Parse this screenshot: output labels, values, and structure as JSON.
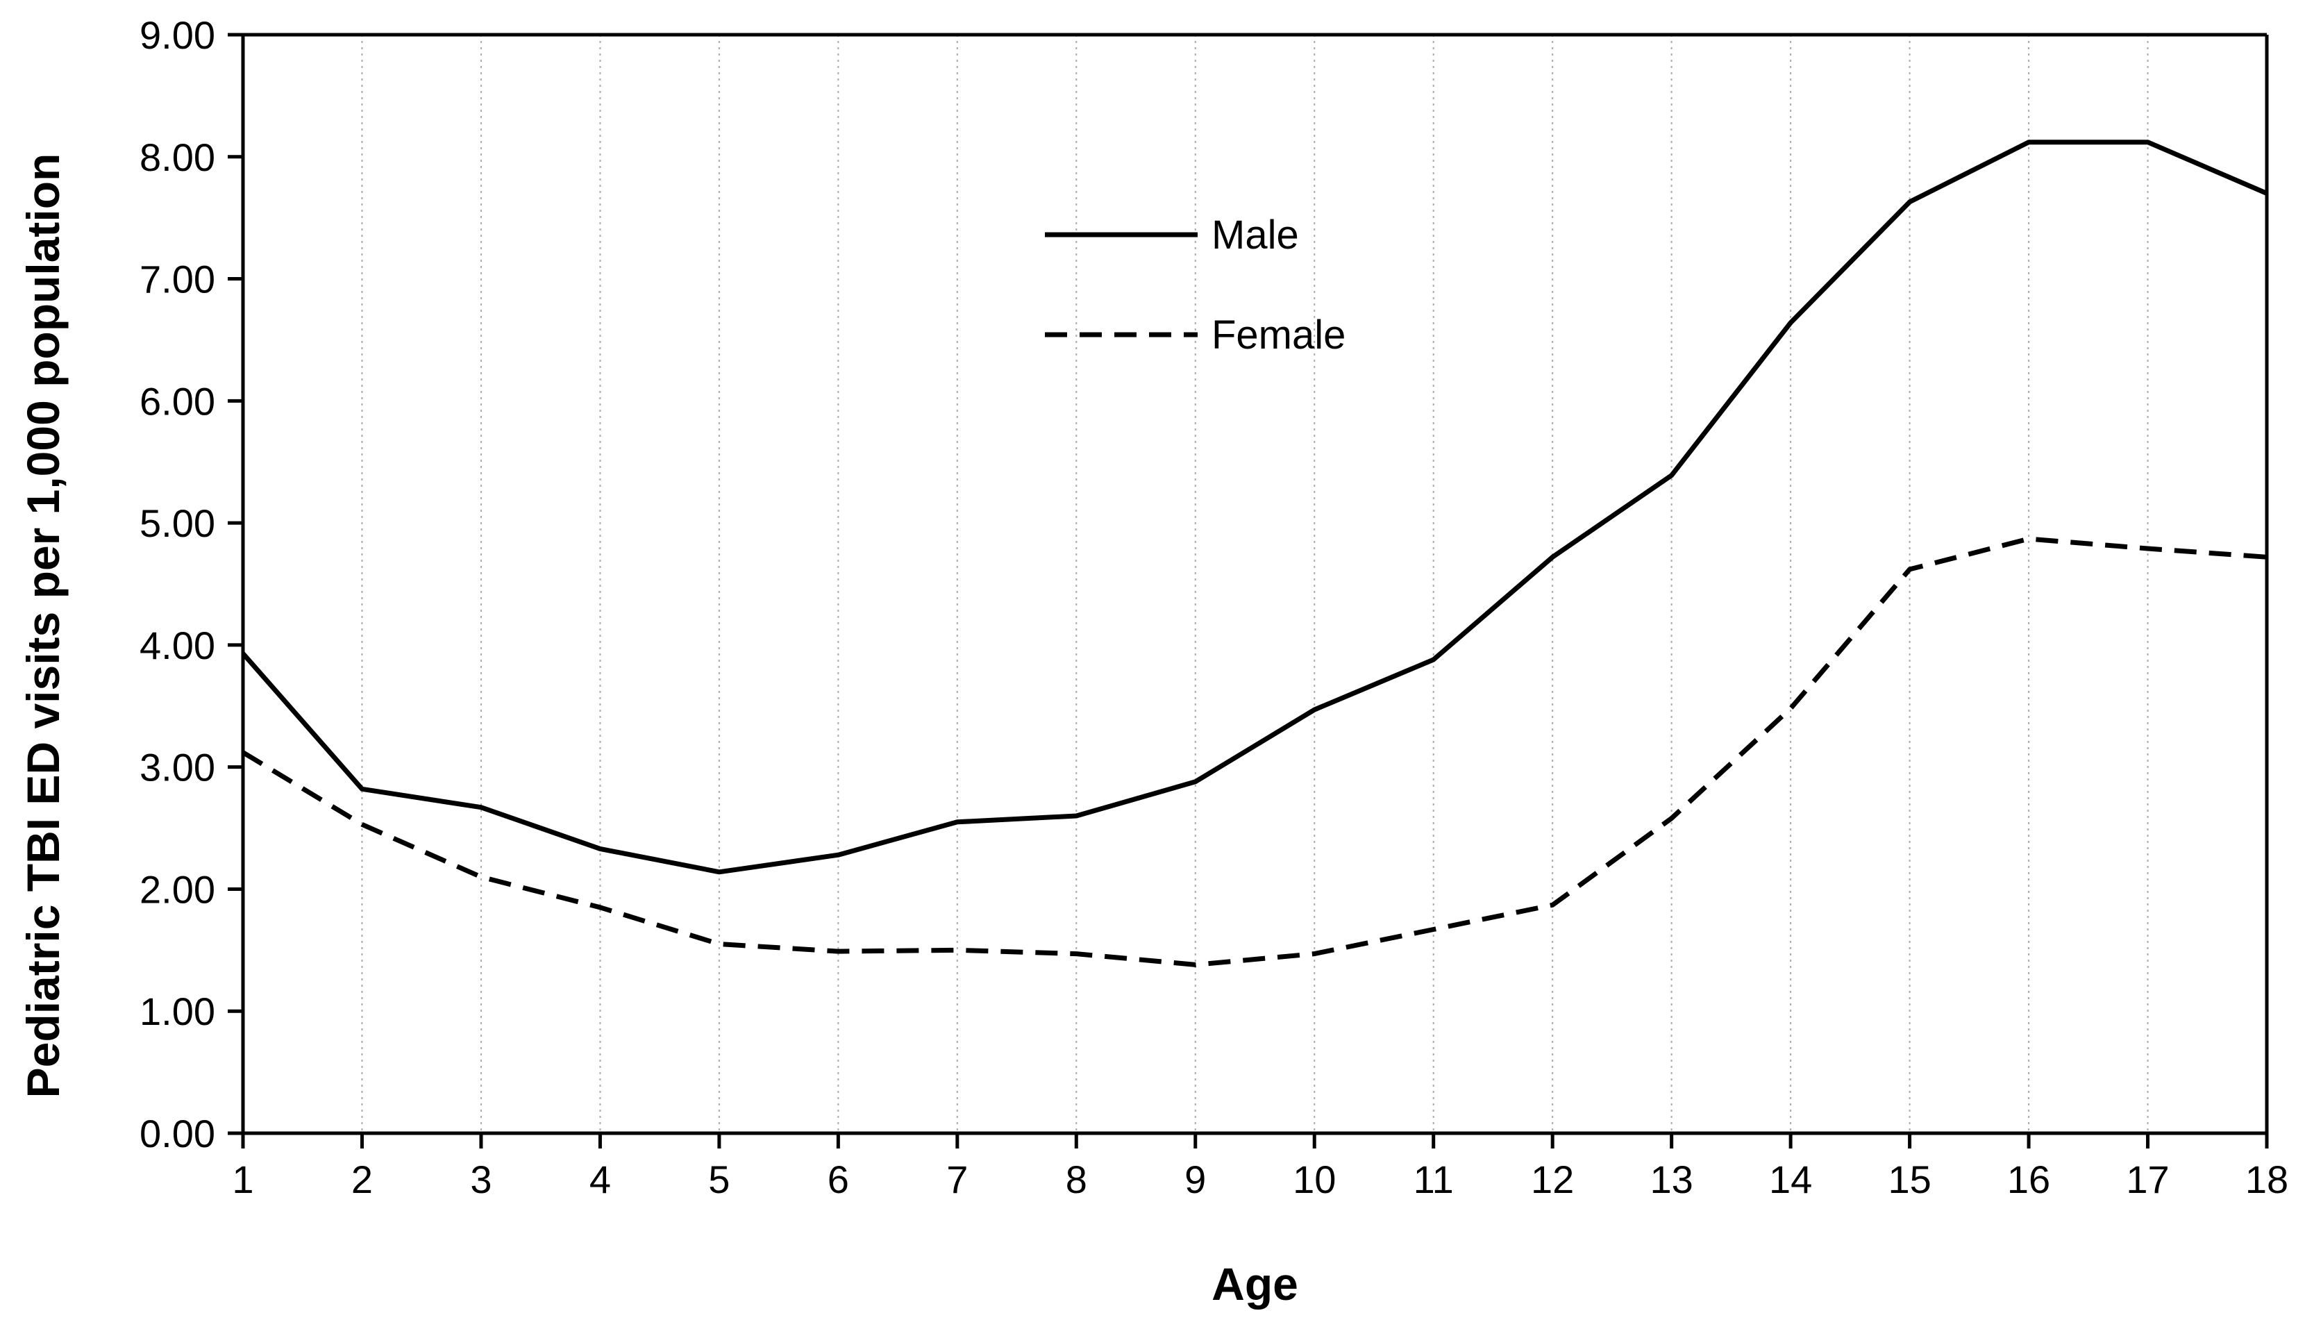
{
  "chart_data": {
    "type": "line",
    "title": "",
    "xlabel": "Age",
    "ylabel": "Pediatric TBI  ED visits per 1,000 population",
    "x": [
      1,
      2,
      3,
      4,
      5,
      6,
      7,
      8,
      9,
      10,
      11,
      12,
      13,
      14,
      15,
      16,
      17,
      18
    ],
    "x_tick_labels": [
      "1",
      "2",
      "3",
      "4",
      "5",
      "6",
      "7",
      "8",
      "9",
      "10",
      "11",
      "12",
      "13",
      "14",
      "15",
      "16",
      "17",
      "18"
    ],
    "y_tick_labels": [
      "0.00",
      "1.00",
      "2.00",
      "3.00",
      "4.00",
      "5.00",
      "6.00",
      "7.00",
      "8.00",
      "9.00"
    ],
    "xlim": [
      1,
      18
    ],
    "ylim": [
      0,
      9
    ],
    "grid": "vertical dotted gridlines at each age",
    "legend_position": "upper-center",
    "series": [
      {
        "name": "Male",
        "style": "solid",
        "color": "#000000",
        "values": [
          3.93,
          2.82,
          2.67,
          2.33,
          2.14,
          2.28,
          2.55,
          2.6,
          2.88,
          3.47,
          3.88,
          4.72,
          5.39,
          6.64,
          7.63,
          8.12,
          8.12,
          7.7
        ]
      },
      {
        "name": "Female",
        "style": "dashed",
        "color": "#000000",
        "values": [
          3.12,
          2.53,
          2.1,
          1.85,
          1.55,
          1.49,
          1.5,
          1.47,
          1.38,
          1.47,
          1.67,
          1.87,
          2.58,
          3.48,
          4.62,
          4.87,
          4.79,
          4.72
        ]
      }
    ]
  }
}
